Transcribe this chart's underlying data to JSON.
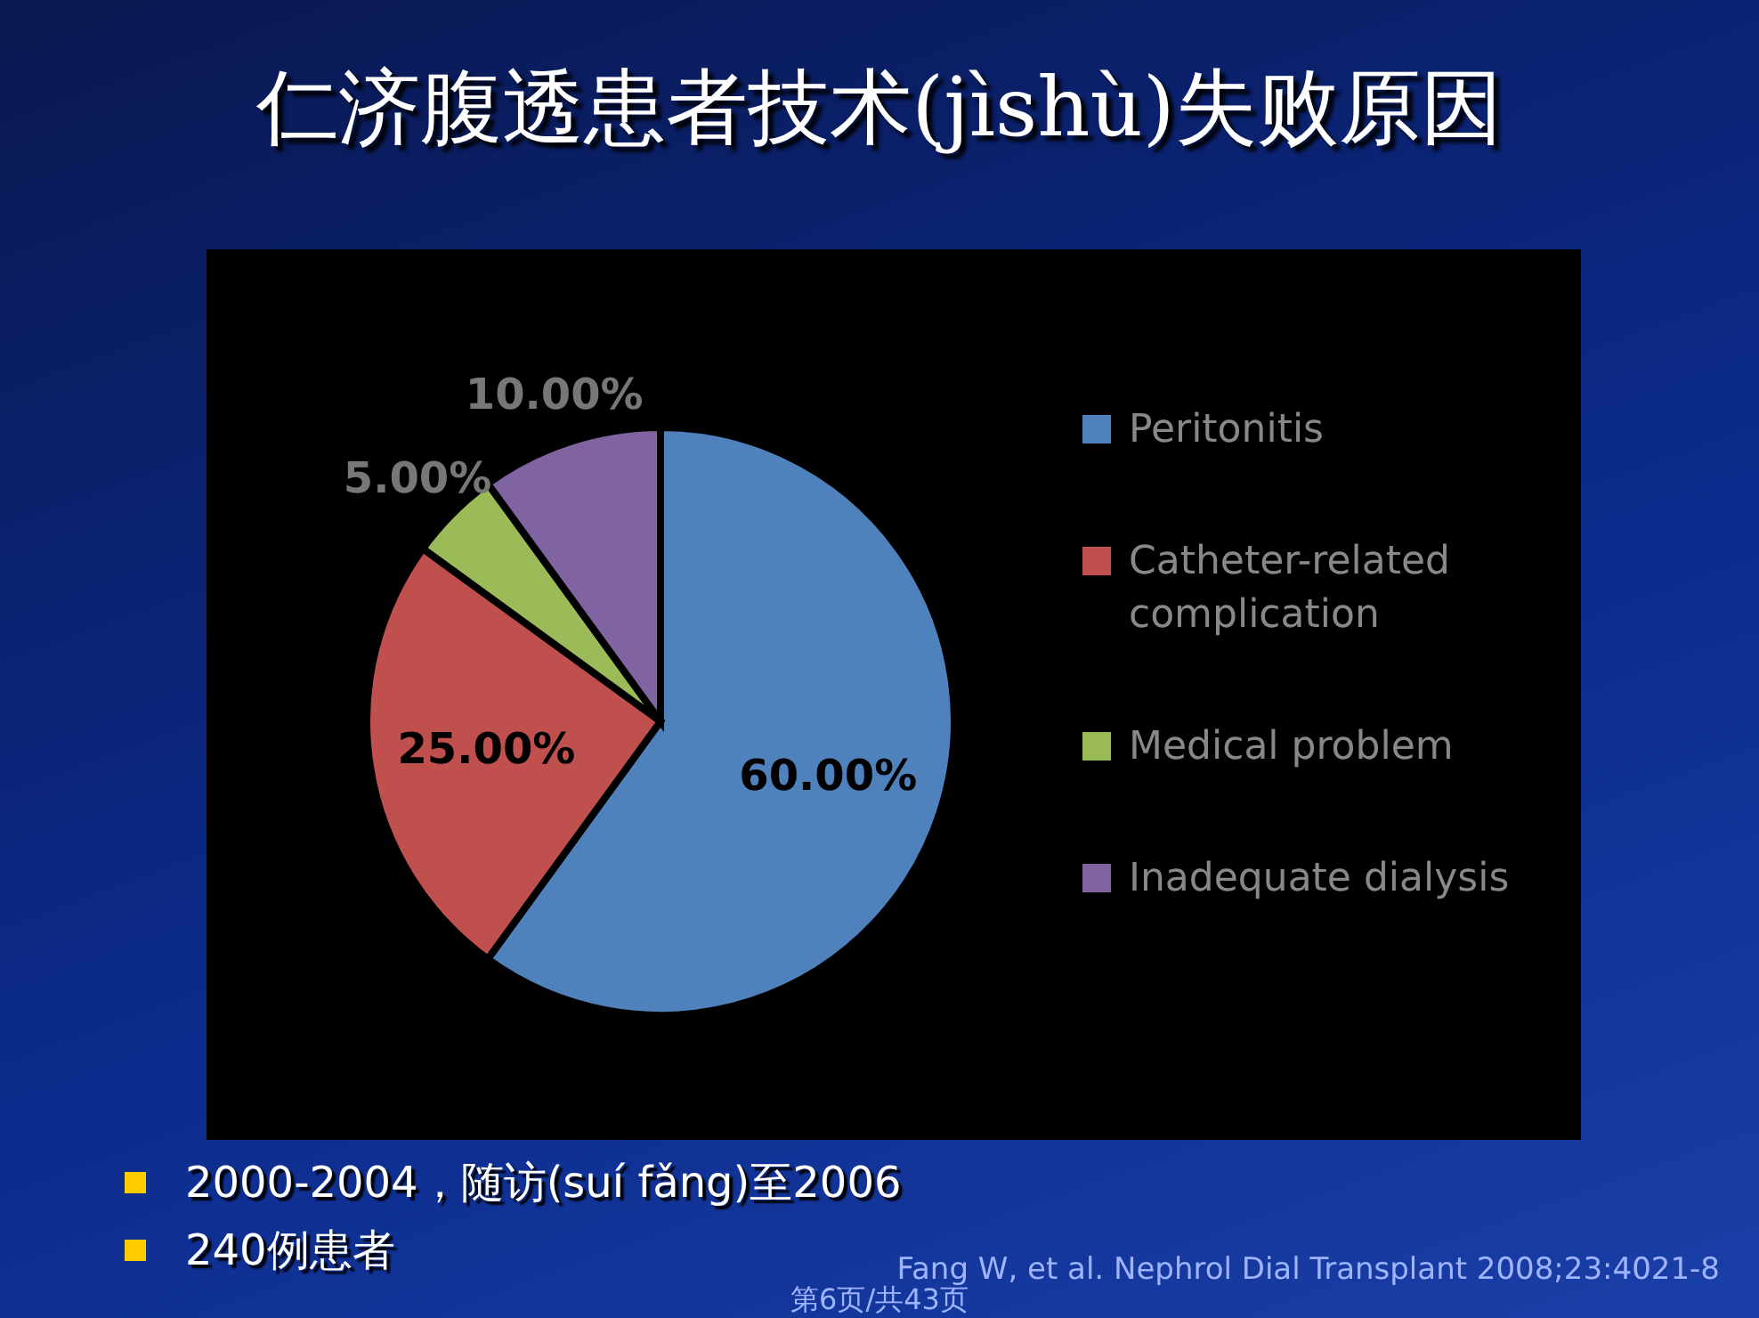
{
  "chart_data": {
    "type": "pie",
    "title": "仁济腹透患者技术(jìshù)失败原因",
    "categories": [
      "Peritonitis",
      "Catheter-related complication",
      "Medical problem",
      "Inadequate dialysis"
    ],
    "values": [
      60,
      25,
      5,
      10
    ],
    "value_labels": [
      "60.00%",
      "25.00%",
      "5.00%",
      "10.00%"
    ],
    "colors": [
      "#4f81bd",
      "#c0504d",
      "#9bbb59",
      "#8064a2"
    ],
    "legend": "right",
    "annotations": [
      "2000-2004，随访(suí fǎng)至2006",
      "240例患者",
      "Fang W, et al. Nephrol Dial Transplant 2008;23:4021-8",
      "第6页/共43页"
    ]
  }
}
